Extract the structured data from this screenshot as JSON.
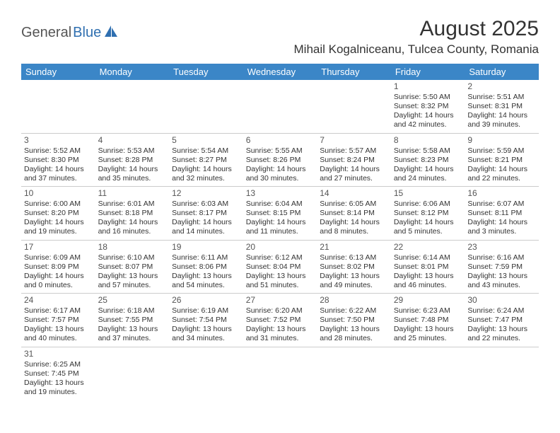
{
  "logo": {
    "part1": "General",
    "part2": "Blue"
  },
  "title": "August 2025",
  "location": "Mihail Kogalniceanu, Tulcea County, Romania",
  "colors": {
    "header_bg": "#3b86c7",
    "header_text": "#ffffff",
    "border": "#cccccc",
    "text": "#333333",
    "logo_gray": "#555555",
    "logo_blue": "#2f6fb0"
  },
  "weekdays": [
    "Sunday",
    "Monday",
    "Tuesday",
    "Wednesday",
    "Thursday",
    "Friday",
    "Saturday"
  ],
  "weeks": [
    [
      null,
      null,
      null,
      null,
      null,
      {
        "n": "1",
        "sr": "Sunrise: 5:50 AM",
        "ss": "Sunset: 8:32 PM",
        "d1": "Daylight: 14 hours",
        "d2": "and 42 minutes."
      },
      {
        "n": "2",
        "sr": "Sunrise: 5:51 AM",
        "ss": "Sunset: 8:31 PM",
        "d1": "Daylight: 14 hours",
        "d2": "and 39 minutes."
      }
    ],
    [
      {
        "n": "3",
        "sr": "Sunrise: 5:52 AM",
        "ss": "Sunset: 8:30 PM",
        "d1": "Daylight: 14 hours",
        "d2": "and 37 minutes."
      },
      {
        "n": "4",
        "sr": "Sunrise: 5:53 AM",
        "ss": "Sunset: 8:28 PM",
        "d1": "Daylight: 14 hours",
        "d2": "and 35 minutes."
      },
      {
        "n": "5",
        "sr": "Sunrise: 5:54 AM",
        "ss": "Sunset: 8:27 PM",
        "d1": "Daylight: 14 hours",
        "d2": "and 32 minutes."
      },
      {
        "n": "6",
        "sr": "Sunrise: 5:55 AM",
        "ss": "Sunset: 8:26 PM",
        "d1": "Daylight: 14 hours",
        "d2": "and 30 minutes."
      },
      {
        "n": "7",
        "sr": "Sunrise: 5:57 AM",
        "ss": "Sunset: 8:24 PM",
        "d1": "Daylight: 14 hours",
        "d2": "and 27 minutes."
      },
      {
        "n": "8",
        "sr": "Sunrise: 5:58 AM",
        "ss": "Sunset: 8:23 PM",
        "d1": "Daylight: 14 hours",
        "d2": "and 24 minutes."
      },
      {
        "n": "9",
        "sr": "Sunrise: 5:59 AM",
        "ss": "Sunset: 8:21 PM",
        "d1": "Daylight: 14 hours",
        "d2": "and 22 minutes."
      }
    ],
    [
      {
        "n": "10",
        "sr": "Sunrise: 6:00 AM",
        "ss": "Sunset: 8:20 PM",
        "d1": "Daylight: 14 hours",
        "d2": "and 19 minutes."
      },
      {
        "n": "11",
        "sr": "Sunrise: 6:01 AM",
        "ss": "Sunset: 8:18 PM",
        "d1": "Daylight: 14 hours",
        "d2": "and 16 minutes."
      },
      {
        "n": "12",
        "sr": "Sunrise: 6:03 AM",
        "ss": "Sunset: 8:17 PM",
        "d1": "Daylight: 14 hours",
        "d2": "and 14 minutes."
      },
      {
        "n": "13",
        "sr": "Sunrise: 6:04 AM",
        "ss": "Sunset: 8:15 PM",
        "d1": "Daylight: 14 hours",
        "d2": "and 11 minutes."
      },
      {
        "n": "14",
        "sr": "Sunrise: 6:05 AM",
        "ss": "Sunset: 8:14 PM",
        "d1": "Daylight: 14 hours",
        "d2": "and 8 minutes."
      },
      {
        "n": "15",
        "sr": "Sunrise: 6:06 AM",
        "ss": "Sunset: 8:12 PM",
        "d1": "Daylight: 14 hours",
        "d2": "and 5 minutes."
      },
      {
        "n": "16",
        "sr": "Sunrise: 6:07 AM",
        "ss": "Sunset: 8:11 PM",
        "d1": "Daylight: 14 hours",
        "d2": "and 3 minutes."
      }
    ],
    [
      {
        "n": "17",
        "sr": "Sunrise: 6:09 AM",
        "ss": "Sunset: 8:09 PM",
        "d1": "Daylight: 14 hours",
        "d2": "and 0 minutes."
      },
      {
        "n": "18",
        "sr": "Sunrise: 6:10 AM",
        "ss": "Sunset: 8:07 PM",
        "d1": "Daylight: 13 hours",
        "d2": "and 57 minutes."
      },
      {
        "n": "19",
        "sr": "Sunrise: 6:11 AM",
        "ss": "Sunset: 8:06 PM",
        "d1": "Daylight: 13 hours",
        "d2": "and 54 minutes."
      },
      {
        "n": "20",
        "sr": "Sunrise: 6:12 AM",
        "ss": "Sunset: 8:04 PM",
        "d1": "Daylight: 13 hours",
        "d2": "and 51 minutes."
      },
      {
        "n": "21",
        "sr": "Sunrise: 6:13 AM",
        "ss": "Sunset: 8:02 PM",
        "d1": "Daylight: 13 hours",
        "d2": "and 49 minutes."
      },
      {
        "n": "22",
        "sr": "Sunrise: 6:14 AM",
        "ss": "Sunset: 8:01 PM",
        "d1": "Daylight: 13 hours",
        "d2": "and 46 minutes."
      },
      {
        "n": "23",
        "sr": "Sunrise: 6:16 AM",
        "ss": "Sunset: 7:59 PM",
        "d1": "Daylight: 13 hours",
        "d2": "and 43 minutes."
      }
    ],
    [
      {
        "n": "24",
        "sr": "Sunrise: 6:17 AM",
        "ss": "Sunset: 7:57 PM",
        "d1": "Daylight: 13 hours",
        "d2": "and 40 minutes."
      },
      {
        "n": "25",
        "sr": "Sunrise: 6:18 AM",
        "ss": "Sunset: 7:55 PM",
        "d1": "Daylight: 13 hours",
        "d2": "and 37 minutes."
      },
      {
        "n": "26",
        "sr": "Sunrise: 6:19 AM",
        "ss": "Sunset: 7:54 PM",
        "d1": "Daylight: 13 hours",
        "d2": "and 34 minutes."
      },
      {
        "n": "27",
        "sr": "Sunrise: 6:20 AM",
        "ss": "Sunset: 7:52 PM",
        "d1": "Daylight: 13 hours",
        "d2": "and 31 minutes."
      },
      {
        "n": "28",
        "sr": "Sunrise: 6:22 AM",
        "ss": "Sunset: 7:50 PM",
        "d1": "Daylight: 13 hours",
        "d2": "and 28 minutes."
      },
      {
        "n": "29",
        "sr": "Sunrise: 6:23 AM",
        "ss": "Sunset: 7:48 PM",
        "d1": "Daylight: 13 hours",
        "d2": "and 25 minutes."
      },
      {
        "n": "30",
        "sr": "Sunrise: 6:24 AM",
        "ss": "Sunset: 7:47 PM",
        "d1": "Daylight: 13 hours",
        "d2": "and 22 minutes."
      }
    ],
    [
      {
        "n": "31",
        "sr": "Sunrise: 6:25 AM",
        "ss": "Sunset: 7:45 PM",
        "d1": "Daylight: 13 hours",
        "d2": "and 19 minutes."
      },
      null,
      null,
      null,
      null,
      null,
      null
    ]
  ]
}
